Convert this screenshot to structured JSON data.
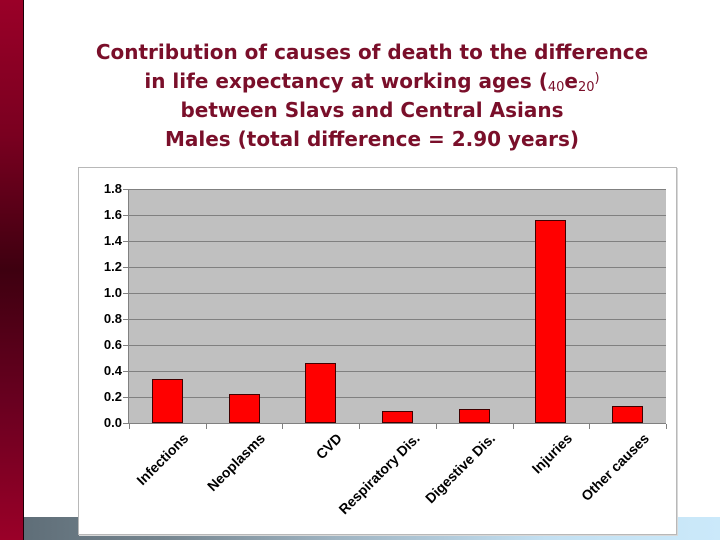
{
  "title": {
    "line1": "Contribution of causes of death to the difference",
    "line2_prefix": "in life expectancy at working ages (",
    "line2_sub1": "40",
    "line2_e": "e",
    "line2_sub2": "20",
    "line2_close": ")",
    "line3": "between Slavs and Central Asians",
    "line4": "Males (total difference = 2.90 years)"
  },
  "colors": {
    "title": "#7a0f2a",
    "bar": "#ff0000",
    "plot_background": "#c0c0c0",
    "sidebar": "#7a0020"
  },
  "y_axis": {
    "ticks": [
      "1.8",
      "1.6",
      "1.4",
      "1.2",
      "1.0",
      "0.8",
      "0.6",
      "0.4",
      "0.2",
      "0.0"
    ]
  },
  "x_axis": {
    "labels": [
      "Infections",
      "Neoplasms",
      "CVD",
      "Respiratory Dis.",
      "Digestive Dis.",
      "Injuries",
      "Other causes"
    ]
  },
  "chart_data": {
    "type": "bar",
    "title": "Contribution of causes of death to the difference in life expectancy at working ages (40e20) between Slavs and Central Asians Males (total difference = 2.90 years)",
    "categories": [
      "Infections",
      "Neoplasms",
      "CVD",
      "Respiratory Dis.",
      "Digestive Dis.",
      "Injuries",
      "Other causes"
    ],
    "values": [
      0.34,
      0.22,
      0.46,
      0.09,
      0.11,
      1.56,
      0.13
    ],
    "xlabel": "",
    "ylabel": "",
    "ylim": [
      0,
      1.8
    ],
    "yticks": [
      0.0,
      0.2,
      0.4,
      0.6,
      0.8,
      1.0,
      1.2,
      1.4,
      1.6,
      1.8
    ],
    "grid": true,
    "legend": null
  }
}
